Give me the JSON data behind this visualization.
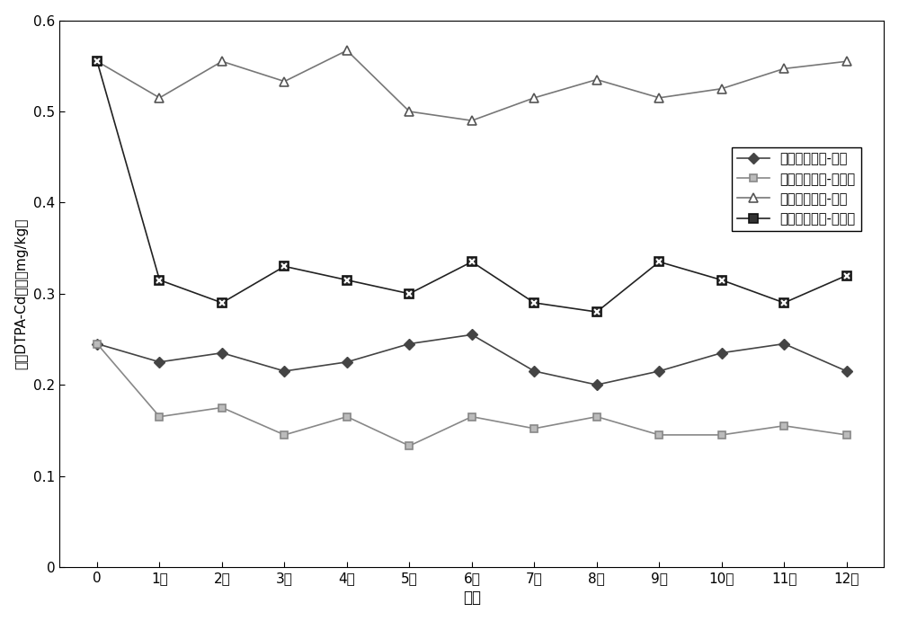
{
  "x_labels": [
    "0",
    "1月",
    "2月",
    "3月",
    "4月",
    "5月",
    "6月",
    "7月",
    "8月",
    "9月",
    "10月",
    "11月",
    "12月"
  ],
  "x_positions": [
    0,
    1,
    2,
    3,
    4,
    5,
    6,
    7,
    8,
    9,
    10,
    11,
    12
  ],
  "series": [
    {
      "label": "自然污染土壤-对照",
      "values": [
        0.245,
        0.225,
        0.235,
        0.215,
        0.225,
        0.245,
        0.255,
        0.215,
        0.2,
        0.215,
        0.235,
        0.245,
        0.215
      ],
      "color": "#444444",
      "marker": "D",
      "markersize": 6,
      "linewidth": 1.2,
      "markerfacecolor": "#444444",
      "markeredgecolor": "#444444",
      "style": "filled"
    },
    {
      "label": "自然污染土壤-钗化剂",
      "values": [
        0.245,
        0.165,
        0.175,
        0.145,
        0.165,
        0.133,
        0.165,
        0.152,
        0.165,
        0.145,
        0.145,
        0.155,
        0.145
      ],
      "color": "#888888",
      "marker": "s",
      "markersize": 6,
      "linewidth": 1.2,
      "markerfacecolor": "#bbbbbb",
      "markeredgecolor": "#888888",
      "style": "open"
    },
    {
      "label": "外源污染土壤-对照",
      "values": [
        0.555,
        0.515,
        0.555,
        0.533,
        0.567,
        0.5,
        0.49,
        0.515,
        0.535,
        0.515,
        0.525,
        0.547,
        0.555
      ],
      "color": "#777777",
      "marker": "^",
      "markersize": 7,
      "linewidth": 1.2,
      "markerfacecolor": "white",
      "markeredgecolor": "#555555",
      "style": "open"
    },
    {
      "label": "外源污染土壤-钗化剂",
      "values": [
        0.555,
        0.315,
        0.29,
        0.33,
        0.315,
        0.3,
        0.335,
        0.29,
        0.28,
        0.335,
        0.315,
        0.29,
        0.32
      ],
      "color": "#222222",
      "marker": "s",
      "markersize": 7,
      "linewidth": 1.2,
      "markerfacecolor": "#333333",
      "markeredgecolor": "#111111",
      "style": "xsquare"
    }
  ],
  "xlabel": "时间",
  "ylabel": "土壤DTPA-Cd含量（mg/kg）",
  "ylim": [
    0,
    0.6
  ],
  "yticks": [
    0,
    0.1,
    0.2,
    0.3,
    0.4,
    0.5,
    0.6
  ],
  "ytick_labels": [
    "0",
    "0.1",
    "0.2",
    "0.3",
    "0.4",
    "0.5",
    "0.6"
  ],
  "title": "",
  "figsize": [
    10.0,
    6.91
  ],
  "dpi": 100,
  "background_color": "white",
  "plot_bg_color": "white"
}
